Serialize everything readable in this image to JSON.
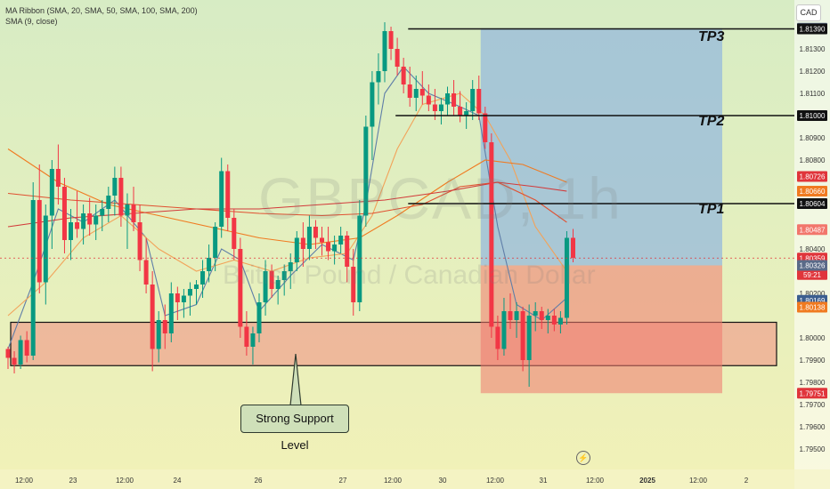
{
  "legend": {
    "line1": "MA Ribbon (SMA, 20, SMA, 50, SMA, 100, SMA, 200)",
    "line2": "SMA (9, close)"
  },
  "currency": "CAD",
  "watermark": {
    "symbol": "GBPCAD, 1h",
    "name": "British Pound / Canadian Dollar"
  },
  "annotations": {
    "tp1": "TP1",
    "tp2": "TP2",
    "tp3": "TP3",
    "callout": "Strong Support Level"
  },
  "chart_data": {
    "type": "candlestick",
    "symbol": "GBPCAD",
    "interval": "1h",
    "y_ticks": [
      "1.81300",
      "1.81200",
      "1.81100",
      "1.80900",
      "1.80800",
      "1.80400",
      "1.80200",
      "1.80000",
      "1.79900",
      "1.79800",
      "1.79700",
      "1.79600",
      "1.79500"
    ],
    "x_ticks": [
      "12:00",
      "23",
      "12:00",
      "24",
      "26",
      "27",
      "12:00",
      "30",
      "12:00",
      "31",
      "12:00",
      "2025",
      "12:00",
      "2"
    ],
    "price_labels": [
      {
        "text": "1.81393",
        "value": 1.81393,
        "color": "#5a6a88"
      },
      {
        "text": "1.81390",
        "value": 1.8139,
        "color": "#111111"
      },
      {
        "text": "1.81000",
        "value": 1.81,
        "color": "#111111"
      },
      {
        "text": "1.80726",
        "value": 1.80726,
        "color": "#e0353b"
      },
      {
        "text": "1.80660",
        "value": 1.8066,
        "color": "#f07a20"
      },
      {
        "text": "1.80604",
        "value": 1.80604,
        "color": "#111111"
      },
      {
        "text": "1.80487",
        "value": 1.80487,
        "color": "#f2766c"
      },
      {
        "text": "1.80359",
        "value": 1.80359,
        "color": "#e0353b"
      },
      {
        "text": "59:21",
        "value": 1.80285,
        "color": "#e0353b"
      },
      {
        "text": "1.80326",
        "value": 1.80326,
        "color": "#5a6a88"
      },
      {
        "text": "1.80169",
        "value": 1.80169,
        "color": "#3b5e8f"
      },
      {
        "text": "1.80138",
        "value": 1.80138,
        "color": "#f07a20"
      },
      {
        "text": "1.79751",
        "value": 1.79751,
        "color": "#e0353b"
      }
    ],
    "candles": [
      [
        1.7995,
        1.7996,
        1.7986,
        1.7991
      ],
      [
        1.7991,
        1.7994,
        1.7984,
        1.7988
      ],
      [
        1.7988,
        1.8001,
        1.7986,
        1.7999
      ],
      [
        1.7999,
        1.8003,
        1.7989,
        1.7992
      ],
      [
        1.7992,
        1.807,
        1.799,
        1.8062
      ],
      [
        1.8062,
        1.8078,
        1.802,
        1.8025
      ],
      [
        1.8025,
        1.806,
        1.8015,
        1.8055
      ],
      [
        1.8055,
        1.808,
        1.804,
        1.8076
      ],
      [
        1.8076,
        1.8087,
        1.806,
        1.8068
      ],
      [
        1.8068,
        1.8072,
        1.8038,
        1.8044
      ],
      [
        1.8044,
        1.8058,
        1.8035,
        1.8052
      ],
      [
        1.8052,
        1.8066,
        1.8045,
        1.8049
      ],
      [
        1.8049,
        1.806,
        1.8042,
        1.8056
      ],
      [
        1.8056,
        1.8063,
        1.8046,
        1.8051
      ],
      [
        1.8051,
        1.806,
        1.8044,
        1.8055
      ],
      [
        1.8055,
        1.8062,
        1.8048,
        1.8058
      ],
      [
        1.8058,
        1.8068,
        1.8052,
        1.8064
      ],
      [
        1.8064,
        1.8077,
        1.8055,
        1.8072
      ],
      [
        1.8072,
        1.8077,
        1.805,
        1.8055
      ],
      [
        1.8055,
        1.8065,
        1.804,
        1.806
      ],
      [
        1.806,
        1.8068,
        1.8048,
        1.8052
      ],
      [
        1.8052,
        1.806,
        1.803,
        1.8035
      ],
      [
        1.8035,
        1.8045,
        1.802,
        1.8024
      ],
      [
        1.8024,
        1.803,
        1.7985,
        1.7995
      ],
      [
        1.7995,
        1.8012,
        1.7989,
        1.8008
      ],
      [
        1.8008,
        1.8015,
        1.7995,
        1.8002
      ],
      [
        1.8002,
        1.8025,
        1.7998,
        1.802
      ],
      [
        1.802,
        1.8023,
        1.8008,
        1.8016
      ],
      [
        1.8016,
        1.8022,
        1.8009,
        1.8019
      ],
      [
        1.8019,
        1.8025,
        1.801,
        1.8022
      ],
      [
        1.8022,
        1.8026,
        1.8015,
        1.8024
      ],
      [
        1.8024,
        1.8035,
        1.8018,
        1.803
      ],
      [
        1.803,
        1.8042,
        1.8025,
        1.8036
      ],
      [
        1.8036,
        1.8052,
        1.803,
        1.805
      ],
      [
        1.805,
        1.8081,
        1.8045,
        1.8075
      ],
      [
        1.8075,
        1.8078,
        1.8048,
        1.8054
      ],
      [
        1.8054,
        1.8058,
        1.8035,
        1.804
      ],
      [
        1.804,
        1.8045,
        1.8,
        1.8005
      ],
      [
        1.8005,
        1.8012,
        1.7992,
        1.7996
      ],
      [
        1.7996,
        1.8005,
        1.7988,
        1.8002
      ],
      [
        1.8002,
        1.802,
        1.7998,
        1.8016
      ],
      [
        1.8016,
        1.8035,
        1.801,
        1.803
      ],
      [
        1.803,
        1.8033,
        1.8018,
        1.8022
      ],
      [
        1.8022,
        1.8028,
        1.8015,
        1.8026
      ],
      [
        1.8026,
        1.8033,
        1.8019,
        1.803
      ],
      [
        1.803,
        1.8038,
        1.8022,
        1.8034
      ],
      [
        1.8034,
        1.8048,
        1.803,
        1.8045
      ],
      [
        1.8045,
        1.8052,
        1.8032,
        1.804
      ],
      [
        1.804,
        1.8055,
        1.8035,
        1.805
      ],
      [
        1.805,
        1.8053,
        1.804,
        1.8045
      ],
      [
        1.8045,
        1.805,
        1.8037,
        1.8043
      ],
      [
        1.8043,
        1.805,
        1.8035,
        1.8039
      ],
      [
        1.8039,
        1.8046,
        1.8033,
        1.8042
      ],
      [
        1.8042,
        1.805,
        1.8038,
        1.8046
      ],
      [
        1.8046,
        1.8048,
        1.8025,
        1.8032
      ],
      [
        1.8032,
        1.804,
        1.801,
        1.8016
      ],
      [
        1.8016,
        1.8062,
        1.8012,
        1.8055
      ],
      [
        1.8055,
        1.81,
        1.805,
        1.8095
      ],
      [
        1.8095,
        1.812,
        1.808,
        1.8115
      ],
      [
        1.8115,
        1.8128,
        1.8105,
        1.812
      ],
      [
        1.812,
        1.8142,
        1.8115,
        1.8138
      ],
      [
        1.8138,
        1.814,
        1.8125,
        1.813
      ],
      [
        1.813,
        1.8135,
        1.8118,
        1.8122
      ],
      [
        1.8122,
        1.8126,
        1.811,
        1.8114
      ],
      [
        1.8114,
        1.8122,
        1.8104,
        1.8108
      ],
      [
        1.8108,
        1.8118,
        1.8102,
        1.8112
      ],
      [
        1.8112,
        1.812,
        1.8105,
        1.8109
      ],
      [
        1.8109,
        1.8114,
        1.8102,
        1.8105
      ],
      [
        1.8105,
        1.8112,
        1.8098,
        1.8102
      ],
      [
        1.8102,
        1.8108,
        1.8096,
        1.8105
      ],
      [
        1.8105,
        1.8113,
        1.81,
        1.811
      ],
      [
        1.811,
        1.8116,
        1.81,
        1.8104
      ],
      [
        1.8104,
        1.8111,
        1.8097,
        1.81
      ],
      [
        1.81,
        1.8106,
        1.8094,
        1.8102
      ],
      [
        1.8102,
        1.8116,
        1.8098,
        1.8112
      ],
      [
        1.8112,
        1.8118,
        1.8098,
        1.8101
      ],
      [
        1.8101,
        1.8104,
        1.8085,
        1.8088
      ],
      [
        1.8088,
        1.8092,
        1.8,
        1.8005
      ],
      [
        1.8005,
        1.801,
        1.799,
        1.7995
      ],
      [
        1.7995,
        1.8018,
        1.7992,
        1.8012
      ],
      [
        1.8012,
        1.802,
        1.8004,
        1.8008
      ],
      [
        1.8008,
        1.8016,
        1.8,
        1.8012
      ],
      [
        1.8012,
        1.8014,
        1.7985,
        1.799
      ],
      [
        1.799,
        1.8015,
        1.7978,
        1.801
      ],
      [
        1.801,
        1.8016,
        1.8003,
        1.8012
      ],
      [
        1.8012,
        1.8014,
        1.8004,
        1.8008
      ],
      [
        1.8008,
        1.8013,
        1.8002,
        1.801
      ],
      [
        1.801,
        1.8013,
        1.8003,
        1.8006
      ],
      [
        1.8006,
        1.8012,
        1.8002,
        1.8009
      ],
      [
        1.8009,
        1.8048,
        1.8006,
        1.8045
      ],
      [
        1.8045,
        1.8049,
        1.8034,
        1.8036
      ]
    ],
    "moving_averages": [
      {
        "name": "SMA 9",
        "color": "#5f7ea8",
        "points": [
          [
            0,
            1.7995
          ],
          [
            4,
            1.8025
          ],
          [
            8,
            1.8058
          ],
          [
            12,
            1.8052
          ],
          [
            17,
            1.8062
          ],
          [
            22,
            1.8045
          ],
          [
            25,
            1.801
          ],
          [
            30,
            1.8015
          ],
          [
            34,
            1.804
          ],
          [
            37,
            1.8035
          ],
          [
            40,
            1.8012
          ],
          [
            45,
            1.8028
          ],
          [
            50,
            1.8042
          ],
          [
            55,
            1.8035
          ],
          [
            57,
            1.806
          ],
          [
            60,
            1.811
          ],
          [
            63,
            1.8122
          ],
          [
            67,
            1.811
          ],
          [
            72,
            1.8104
          ],
          [
            75,
            1.81
          ],
          [
            78,
            1.805
          ],
          [
            81,
            1.8015
          ],
          [
            85,
            1.8008
          ],
          [
            89,
            1.8018
          ]
        ]
      },
      {
        "name": "SMA 20",
        "color": "#f2a35a",
        "points": [
          [
            0,
            1.801
          ],
          [
            6,
            1.8025
          ],
          [
            12,
            1.8045
          ],
          [
            18,
            1.8055
          ],
          [
            24,
            1.804
          ],
          [
            30,
            1.803
          ],
          [
            36,
            1.8035
          ],
          [
            42,
            1.803
          ],
          [
            48,
            1.8036
          ],
          [
            54,
            1.8038
          ],
          [
            58,
            1.8055
          ],
          [
            62,
            1.8085
          ],
          [
            66,
            1.8105
          ],
          [
            72,
            1.811
          ],
          [
            76,
            1.81
          ],
          [
            80,
            1.808
          ],
          [
            84,
            1.805
          ],
          [
            89,
            1.803
          ]
        ]
      },
      {
        "name": "SMA 50",
        "color": "#f07a20",
        "points": [
          [
            0,
            1.8085
          ],
          [
            8,
            1.807
          ],
          [
            16,
            1.806
          ],
          [
            24,
            1.8055
          ],
          [
            32,
            1.805
          ],
          [
            40,
            1.8045
          ],
          [
            48,
            1.8042
          ],
          [
            56,
            1.8045
          ],
          [
            62,
            1.8055
          ],
          [
            70,
            1.807
          ],
          [
            76,
            1.808
          ],
          [
            82,
            1.8078
          ],
          [
            89,
            1.807
          ]
        ]
      },
      {
        "name": "SMA 100",
        "color": "#e05030",
        "points": [
          [
            0,
            1.8065
          ],
          [
            10,
            1.8062
          ],
          [
            20,
            1.806
          ],
          [
            30,
            1.8058
          ],
          [
            40,
            1.8056
          ],
          [
            50,
            1.8055
          ],
          [
            58,
            1.8056
          ],
          [
            66,
            1.806
          ],
          [
            72,
            1.8068
          ],
          [
            78,
            1.807
          ],
          [
            84,
            1.8062
          ],
          [
            89,
            1.8052
          ]
        ]
      },
      {
        "name": "SMA 200",
        "color": "#d23a3a",
        "points": [
          [
            0,
            1.805
          ],
          [
            10,
            1.8054
          ],
          [
            20,
            1.8056
          ],
          [
            30,
            1.8058
          ],
          [
            40,
            1.8058
          ],
          [
            50,
            1.806
          ],
          [
            60,
            1.8062
          ],
          [
            70,
            1.8066
          ],
          [
            78,
            1.807
          ],
          [
            84,
            1.8068
          ],
          [
            89,
            1.8066
          ]
        ]
      }
    ],
    "horizontal_lines": [
      {
        "label": "TP3",
        "value": 1.8139,
        "from_index": 66
      },
      {
        "label": "TP2",
        "value": 1.81,
        "from_index": 64
      },
      {
        "label": "TP1",
        "value": 1.80604,
        "from_index": 66
      },
      {
        "label": "current",
        "value": 1.80359,
        "dashed": true
      }
    ],
    "zones": [
      {
        "name": "support",
        "top": 1.8007,
        "bottom": 1.79875,
        "from_index": 0
      },
      {
        "name": "profit",
        "top": 1.81393,
        "bottom": 1.80326,
        "from_index": 75
      },
      {
        "name": "stop",
        "top": 1.80326,
        "bottom": 1.79751,
        "from_index": 75
      }
    ],
    "ylim": [
      1.7942,
      1.8152
    ]
  }
}
